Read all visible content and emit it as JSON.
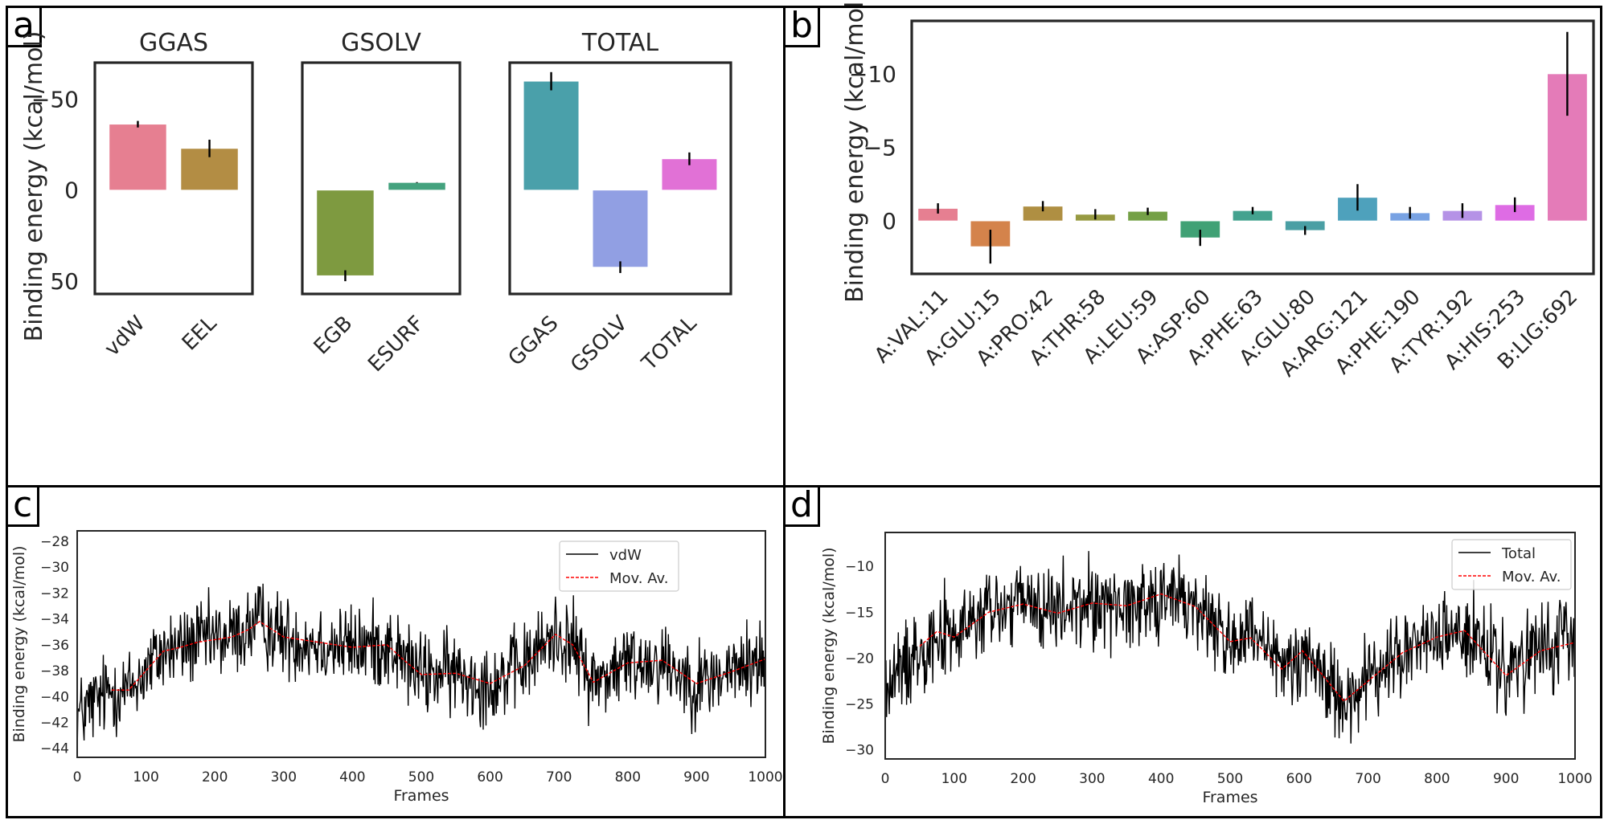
{
  "panels": {
    "a": {
      "label": "a"
    },
    "b": {
      "label": "b"
    },
    "c": {
      "label": "c"
    },
    "d": {
      "label": "d"
    }
  },
  "chart_data": [
    {
      "id": "a",
      "type": "bar",
      "ylabel": "Binding energy (kcal/mol)",
      "yaxis_inverted": true,
      "ylim": [
        -70,
        57
      ],
      "yticks": [
        -50,
        0,
        50
      ],
      "ytick_labels": [
        "−50",
        "0",
        "50"
      ],
      "grid": false,
      "subplots": [
        {
          "title": "GGAS",
          "categories": [
            "vdW",
            "EEL"
          ],
          "values": [
            -36.2,
            -22.9
          ],
          "errors": [
            1.8,
            4.8
          ],
          "colors": [
            "#e67f91",
            "#b38d44"
          ]
        },
        {
          "title": "GSOLV",
          "categories": [
            "EGB",
            "ESURF"
          ],
          "values": [
            47.0,
            -4.2
          ],
          "errors": [
            3.0,
            0.2
          ],
          "colors": [
            "#7e9a40",
            "#44a27e"
          ]
        },
        {
          "title": "TOTAL",
          "categories": [
            "GGAS",
            "GSOLV",
            "TOTAL"
          ],
          "values": [
            -59.8,
            42.3,
            -17.2
          ],
          "errors": [
            5.0,
            3.2,
            3.5
          ],
          "colors": [
            "#4aa0aa",
            "#919fe3",
            "#e171d6"
          ]
        }
      ]
    },
    {
      "id": "b",
      "type": "bar",
      "ylabel": "Binding energy (kcal/mol)",
      "yaxis_inverted": true,
      "ylim": [
        -13.6,
        3.6
      ],
      "yticks": [
        -10,
        -5,
        0
      ],
      "ytick_labels": [
        "−10",
        "−5",
        "0"
      ],
      "grid": false,
      "categories": [
        "A:VAL:11",
        "A:GLU:15",
        "A:PRO:42",
        "A:THR:58",
        "A:LEU:59",
        "A:ASP:60",
        "A:PHE:63",
        "A:GLU:80",
        "A:ARG:121",
        "A:PHE:190",
        "A:TYR:192",
        "A:HIS:253",
        "B:LIG:692"
      ],
      "values": [
        -0.85,
        1.75,
        -1.0,
        -0.45,
        -0.65,
        1.15,
        -0.7,
        0.65,
        -1.6,
        -0.55,
        -0.7,
        -1.1,
        -10.0
      ],
      "errors": [
        0.35,
        1.15,
        0.35,
        0.35,
        0.25,
        0.55,
        0.25,
        0.3,
        0.9,
        0.4,
        0.5,
        0.5,
        2.85
      ],
      "colors": [
        "#e67f91",
        "#d4834b",
        "#af8f42",
        "#979a42",
        "#74a046",
        "#40a175",
        "#44a28f",
        "#4a9fa4",
        "#4ea1bc",
        "#78a2e3",
        "#b592e6",
        "#de6ce4",
        "#e47bb8"
      ]
    },
    {
      "id": "c",
      "type": "line",
      "xlabel": "Frames",
      "ylabel": "Binding energy (kcal/mol)",
      "xlim": [
        0,
        1000
      ],
      "ylim": [
        -44.7,
        -27.2
      ],
      "xticks": [
        0,
        100,
        200,
        300,
        400,
        500,
        600,
        700,
        800,
        900,
        1000
      ],
      "yticks": [
        -44,
        -42,
        -40,
        -38,
        -36,
        -34,
        -32,
        -30,
        -28
      ],
      "ytick_labels": [
        "−44",
        "−42",
        "−40",
        "−38",
        "−36",
        "−34",
        "−32",
        "−30",
        "−28"
      ],
      "legend": {
        "position": "top-center-right",
        "entries": [
          "vdW",
          "Mov. Av."
        ]
      },
      "series": [
        {
          "name": "vdW",
          "style": "solid",
          "color": "#000000",
          "n_points": 1000,
          "noise_amplitude": 2.0
        },
        {
          "name": "Mov. Av.",
          "style": "dashed",
          "color": "#ff0000",
          "x": [
            50,
            75,
            100,
            125,
            150,
            175,
            200,
            225,
            250,
            265,
            300,
            350,
            400,
            450,
            475,
            500,
            550,
            600,
            650,
            695,
            720,
            750,
            800,
            850,
            900,
            950,
            1000
          ],
          "y": [
            -39.5,
            -39.5,
            -38.0,
            -36.5,
            -36.2,
            -35.8,
            -35.6,
            -35.4,
            -34.8,
            -34.2,
            -35.4,
            -35.8,
            -36.2,
            -36.0,
            -37.2,
            -38.3,
            -38.2,
            -39.0,
            -37.6,
            -35.2,
            -36.0,
            -38.9,
            -37.4,
            -37.2,
            -39.0,
            -38.1,
            -37.1
          ]
        }
      ]
    },
    {
      "id": "d",
      "type": "line",
      "xlabel": "Frames",
      "ylabel": "Binding energy (kcal/mol)",
      "xlim": [
        0,
        1000
      ],
      "ylim": [
        -31,
        -6.3
      ],
      "xticks": [
        0,
        100,
        200,
        300,
        400,
        500,
        600,
        700,
        800,
        900,
        1000
      ],
      "yticks": [
        -30,
        -25,
        -20,
        -15,
        -10
      ],
      "ytick_labels": [
        "−30",
        "−25",
        "−20",
        "−15",
        "−10"
      ],
      "legend": {
        "position": "top-right",
        "entries": [
          "Total",
          "Mov. Av."
        ]
      },
      "series": [
        {
          "name": "Total",
          "style": "solid",
          "color": "#000000",
          "n_points": 1000,
          "noise_amplitude": 3.0
        },
        {
          "name": "Mov. Av.",
          "style": "dashed",
          "color": "#ff0000",
          "x": [
            50,
            75,
            100,
            150,
            200,
            250,
            300,
            350,
            400,
            450,
            500,
            530,
            575,
            605,
            665,
            700,
            750,
            800,
            840,
            900,
            950,
            1000
          ],
          "y": [
            -18.7,
            -17.1,
            -17.7,
            -15.0,
            -14.1,
            -15.1,
            -14.0,
            -14.3,
            -13.0,
            -14.4,
            -18.2,
            -17.8,
            -21.2,
            -19.2,
            -24.7,
            -22.5,
            -19.4,
            -17.7,
            -17.0,
            -21.9,
            -19.2,
            -18.3
          ]
        }
      ]
    }
  ]
}
